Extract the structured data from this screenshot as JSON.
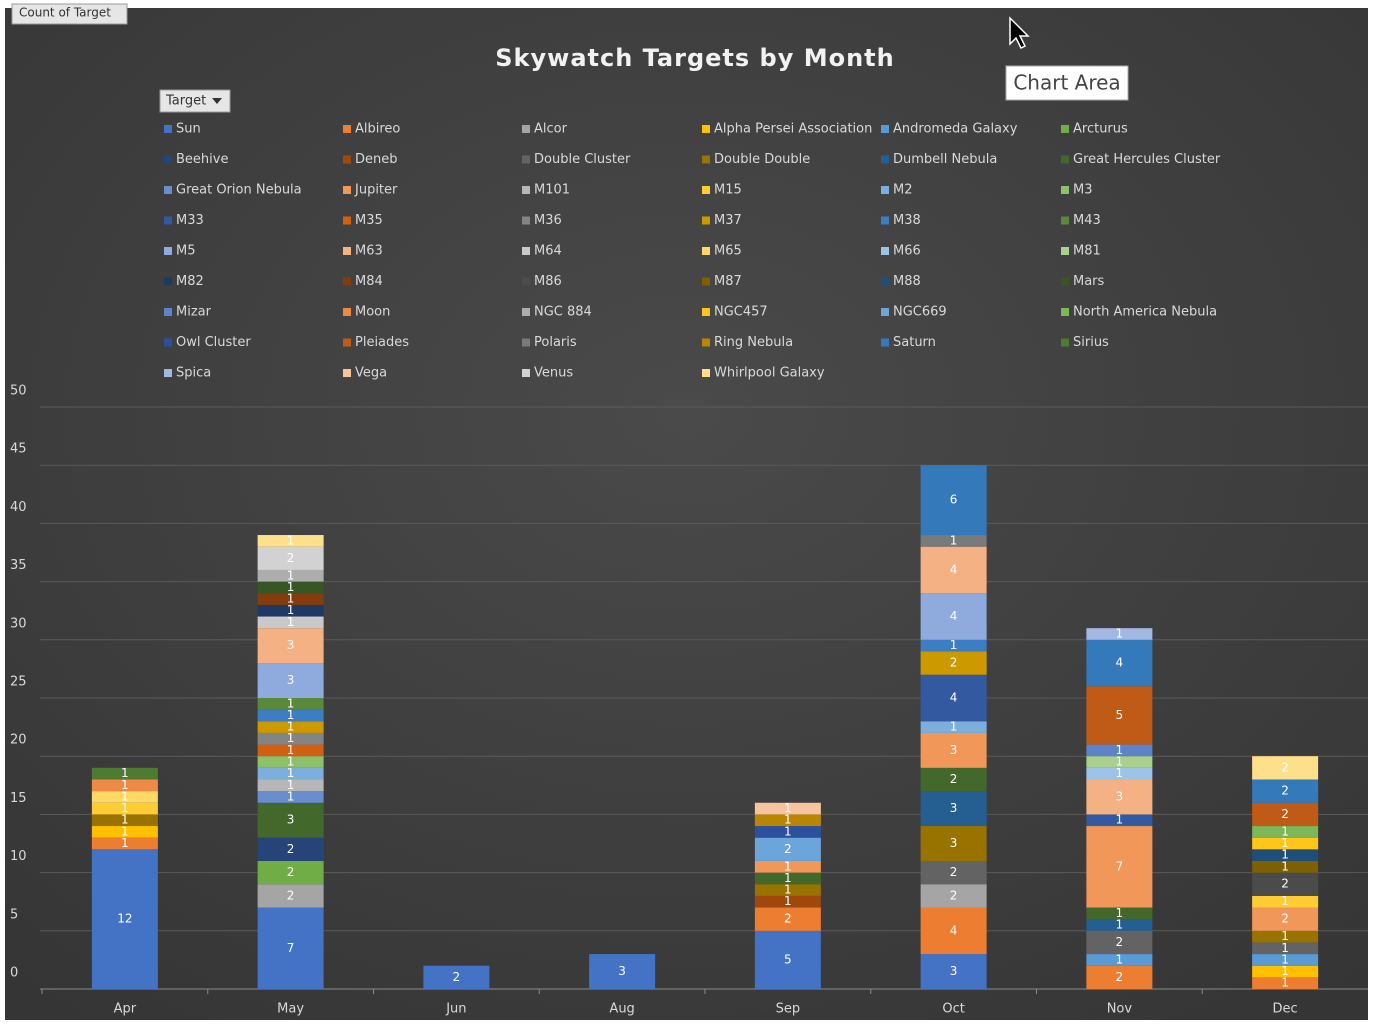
{
  "chart_data": {
    "type": "stacked_bar",
    "title": "Skywatch Targets by Month",
    "field_button": "Count of Target",
    "legend_title": "Target",
    "tooltip": "Chart Area",
    "categories": [
      "Apr",
      "May",
      "Jun",
      "Aug",
      "Sep",
      "Oct",
      "Nov",
      "Dec"
    ],
    "ylim": [
      0,
      50
    ],
    "yticks": [
      0,
      5,
      10,
      15,
      20,
      25,
      30,
      35,
      40,
      45,
      50
    ],
    "grid": true,
    "legend": "top",
    "series": [
      {
        "name": "Sun",
        "color": "#4472c4",
        "values": [
          12,
          7,
          2,
          3,
          5,
          3,
          null,
          null
        ]
      },
      {
        "name": "Albireo",
        "color": "#ed7d31",
        "values": [
          1,
          null,
          null,
          null,
          2,
          4,
          2,
          1
        ]
      },
      {
        "name": "Alcor",
        "color": "#a5a5a5",
        "values": [
          null,
          2,
          null,
          null,
          null,
          2,
          null,
          null
        ]
      },
      {
        "name": "Alpha Persei Association",
        "color": "#ffc000",
        "values": [
          1,
          null,
          null,
          null,
          null,
          null,
          null,
          1
        ]
      },
      {
        "name": "Andromeda Galaxy",
        "color": "#5b9bd5",
        "values": [
          null,
          null,
          null,
          null,
          null,
          null,
          1,
          1
        ]
      },
      {
        "name": "Arcturus",
        "color": "#70ad47",
        "values": [
          null,
          2,
          null,
          null,
          null,
          null,
          null,
          null
        ]
      },
      {
        "name": "Beehive",
        "color": "#264478",
        "values": [
          null,
          2,
          null,
          null,
          null,
          null,
          null,
          null
        ]
      },
      {
        "name": "Deneb",
        "color": "#9e480e",
        "values": [
          null,
          null,
          null,
          null,
          1,
          null,
          null,
          null
        ]
      },
      {
        "name": "Double Cluster",
        "color": "#636363",
        "values": [
          null,
          null,
          null,
          null,
          null,
          2,
          2,
          1
        ]
      },
      {
        "name": "Double Double",
        "color": "#997300",
        "values": [
          1,
          null,
          null,
          null,
          1,
          3,
          null,
          1
        ]
      },
      {
        "name": "Dumbell Nebula",
        "color": "#255e91",
        "values": [
          null,
          null,
          null,
          null,
          null,
          3,
          1,
          null
        ]
      },
      {
        "name": "Great Hercules Cluster",
        "color": "#43682b",
        "values": [
          null,
          3,
          null,
          null,
          1,
          2,
          1,
          null
        ]
      },
      {
        "name": "Great Orion Nebula",
        "color": "#698ed0",
        "values": [
          null,
          1,
          null,
          null,
          null,
          null,
          null,
          null
        ]
      },
      {
        "name": "Jupiter",
        "color": "#f1975a",
        "values": [
          null,
          null,
          null,
          null,
          1,
          3,
          7,
          2
        ]
      },
      {
        "name": "M101",
        "color": "#b7b7b7",
        "values": [
          null,
          1,
          null,
          null,
          null,
          null,
          null,
          null
        ]
      },
      {
        "name": "M15",
        "color": "#ffcd33",
        "values": [
          1,
          null,
          null,
          null,
          null,
          null,
          null,
          1
        ]
      },
      {
        "name": "M2",
        "color": "#7cafdd",
        "values": [
          null,
          1,
          null,
          null,
          null,
          1,
          null,
          null
        ]
      },
      {
        "name": "M3",
        "color": "#8cc168",
        "values": [
          null,
          1,
          null,
          null,
          null,
          null,
          null,
          null
        ]
      },
      {
        "name": "M33",
        "color": "#335aa1",
        "values": [
          null,
          null,
          null,
          null,
          null,
          4,
          1,
          null
        ]
      },
      {
        "name": "M35",
        "color": "#d26012",
        "values": [
          null,
          1,
          null,
          null,
          null,
          null,
          null,
          null
        ]
      },
      {
        "name": "M36",
        "color": "#848484",
        "values": [
          null,
          1,
          null,
          null,
          null,
          null,
          null,
          null
        ]
      },
      {
        "name": "M37",
        "color": "#cc9a00",
        "values": [
          null,
          1,
          null,
          null,
          null,
          2,
          null,
          null
        ]
      },
      {
        "name": "M38",
        "color": "#3c7dc4",
        "values": [
          null,
          1,
          null,
          null,
          null,
          1,
          null,
          null
        ]
      },
      {
        "name": "M43",
        "color": "#5a8a39",
        "values": [
          null,
          1,
          null,
          null,
          null,
          null,
          null,
          null
        ]
      },
      {
        "name": "M5",
        "color": "#8faadc",
        "values": [
          null,
          3,
          null,
          null,
          null,
          4,
          null,
          null
        ]
      },
      {
        "name": "M63",
        "color": "#f4b183",
        "values": [
          null,
          3,
          null,
          null,
          null,
          4,
          3,
          null
        ]
      },
      {
        "name": "M64",
        "color": "#c9c9c9",
        "values": [
          null,
          1,
          null,
          null,
          null,
          null,
          null,
          null
        ]
      },
      {
        "name": "M65",
        "color": "#ffd966",
        "values": [
          1,
          null,
          null,
          null,
          null,
          null,
          null,
          null
        ]
      },
      {
        "name": "M66",
        "color": "#9dc3e6",
        "values": [
          null,
          null,
          null,
          null,
          null,
          null,
          1,
          null
        ]
      },
      {
        "name": "M81",
        "color": "#a9d18e",
        "values": [
          null,
          null,
          null,
          null,
          null,
          null,
          1,
          null
        ]
      },
      {
        "name": "M82",
        "color": "#203864",
        "values": [
          null,
          1,
          null,
          null,
          null,
          null,
          null,
          null
        ]
      },
      {
        "name": "M84",
        "color": "#843c0c",
        "values": [
          null,
          1,
          null,
          null,
          null,
          null,
          null,
          null
        ]
      },
      {
        "name": "M86",
        "color": "#4b4b4b",
        "values": [
          null,
          null,
          null,
          null,
          null,
          null,
          null,
          2
        ]
      },
      {
        "name": "M87",
        "color": "#7f6000",
        "values": [
          null,
          null,
          null,
          null,
          null,
          null,
          null,
          1
        ]
      },
      {
        "name": "M88",
        "color": "#1f4e79",
        "values": [
          null,
          null,
          null,
          null,
          null,
          null,
          null,
          1
        ]
      },
      {
        "name": "Mars",
        "color": "#375623",
        "values": [
          null,
          1,
          null,
          null,
          null,
          null,
          null,
          null
        ]
      },
      {
        "name": "Mizar",
        "color": "#5e83c9",
        "values": [
          null,
          null,
          null,
          null,
          null,
          null,
          1,
          null
        ]
      },
      {
        "name": "Moon",
        "color": "#ef8a46",
        "values": [
          1,
          null,
          null,
          null,
          null,
          null,
          null,
          null
        ]
      },
      {
        "name": "NGC 884",
        "color": "#adadad",
        "values": [
          null,
          1,
          null,
          null,
          null,
          null,
          null,
          null
        ]
      },
      {
        "name": "NGC457",
        "color": "#ffc619",
        "values": [
          null,
          null,
          null,
          null,
          null,
          null,
          null,
          1
        ]
      },
      {
        "name": "NGC669",
        "color": "#6ca5d9",
        "values": [
          null,
          null,
          null,
          null,
          2,
          null,
          null,
          null
        ]
      },
      {
        "name": "North America Nebula",
        "color": "#7db758",
        "values": [
          null,
          null,
          null,
          null,
          null,
          null,
          null,
          1
        ]
      },
      {
        "name": "Owl Cluster",
        "color": "#2d509e",
        "values": [
          null,
          null,
          null,
          null,
          1,
          null,
          null,
          null
        ]
      },
      {
        "name": "Pleiades",
        "color": "#bf5b16",
        "values": [
          null,
          null,
          null,
          null,
          null,
          null,
          5,
          2
        ]
      },
      {
        "name": "Polaris",
        "color": "#7a7a7a",
        "values": [
          null,
          null,
          null,
          null,
          null,
          1,
          null,
          null
        ]
      },
      {
        "name": "Ring Nebula",
        "color": "#b88600",
        "values": [
          null,
          null,
          null,
          null,
          1,
          null,
          null,
          null
        ]
      },
      {
        "name": "Saturn",
        "color": "#3479ba",
        "values": [
          null,
          null,
          null,
          null,
          null,
          6,
          4,
          2
        ]
      },
      {
        "name": "Sirius",
        "color": "#4f7a32",
        "values": [
          1,
          null,
          null,
          null,
          null,
          null,
          null,
          null
        ]
      },
      {
        "name": "Spica",
        "color": "#a2b8e1",
        "values": [
          null,
          null,
          null,
          null,
          null,
          null,
          1,
          null
        ]
      },
      {
        "name": "Vega",
        "color": "#f7c4a0",
        "values": [
          null,
          null,
          null,
          null,
          1,
          null,
          null,
          null
        ]
      },
      {
        "name": "Venus",
        "color": "#d2d2d2",
        "values": [
          null,
          2,
          null,
          null,
          null,
          null,
          null,
          null
        ]
      },
      {
        "name": "Whirlpool Galaxy",
        "color": "#ffe08a",
        "values": [
          null,
          1,
          null,
          null,
          null,
          null,
          null,
          2
        ]
      }
    ]
  }
}
